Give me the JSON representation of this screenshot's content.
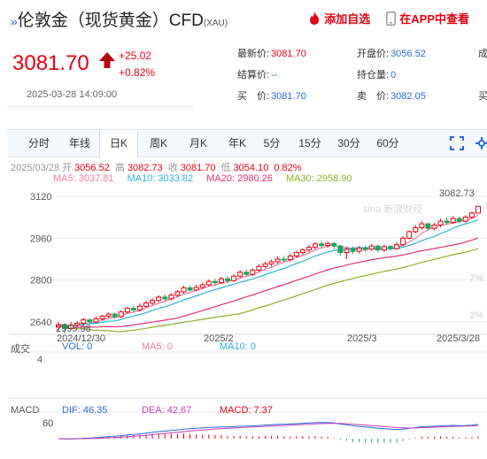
{
  "header": {
    "title": "伦敦金（现货黄金）CFD",
    "symbol": "(XAU)",
    "add_favorite": "添加自选",
    "app_view": "在APP中查看"
  },
  "quote": {
    "price": "3081.70",
    "change": "+25.02",
    "change_pct": "+0.82%",
    "timestamp": "2025-03-28 14:09:00",
    "latest_label": "最新价:",
    "latest_value": "3081.70",
    "open_label": "开盘价:",
    "open_value": "3056.52",
    "settle_label": "结算价:",
    "settle_value": "--",
    "oi_label": "持仓量:",
    "oi_value": "0",
    "buy_label": "买　价:",
    "buy_value": "3081.70",
    "sell_label": "卖　价:",
    "sell_value": "3082.05",
    "cut_label_1": "成",
    "cut_label_2": "买"
  },
  "tabs": [
    "分时",
    "年线",
    "日K",
    "周K",
    "月K",
    "年K",
    "5分",
    "15分",
    "30分",
    "60分"
  ],
  "active_tab": "日K",
  "ohlc": {
    "date": "2025/03/28",
    "open_label": "开",
    "open": "3056.52",
    "high_label": "高",
    "high": "3082.73",
    "close_label": "收",
    "close": "3081.70",
    "low_label": "低",
    "low": "3054.10",
    "pct": "0.82%"
  },
  "ma": {
    "ma5": "MA5: 3037.81",
    "ma10": "MA10: 3033.82",
    "ma20": "MA20: 2980.26",
    "ma30": "MA30: 2958.90"
  },
  "chart_data": {
    "type": "candlestick",
    "y_ticks": [
      "3120",
      "2960",
      "2800",
      "2640"
    ],
    "x_labels": [
      "2024/12/30",
      "2025/2",
      "2025/3",
      "2025/3/28"
    ],
    "max_label": "3082.73",
    "min_label": "2595.98",
    "watermark": "sina 新浪财经",
    "right_pct_labels": [
      "7%",
      "2%"
    ],
    "candles": [
      [
        2620,
        2630,
        2606,
        2640
      ],
      [
        2630,
        2615,
        2596,
        2635
      ],
      [
        2615,
        2628,
        2610,
        2640
      ],
      [
        2628,
        2635,
        2620,
        2642
      ],
      [
        2635,
        2648,
        2628,
        2655
      ],
      [
        2648,
        2640,
        2632,
        2652
      ],
      [
        2640,
        2652,
        2636,
        2660
      ],
      [
        2652,
        2662,
        2645,
        2668
      ],
      [
        2662,
        2670,
        2655,
        2676
      ],
      [
        2670,
        2660,
        2652,
        2675
      ],
      [
        2660,
        2678,
        2655,
        2685
      ],
      [
        2678,
        2692,
        2672,
        2698
      ],
      [
        2692,
        2686,
        2678,
        2702
      ],
      [
        2686,
        2700,
        2680,
        2710
      ],
      [
        2700,
        2712,
        2694,
        2720
      ],
      [
        2712,
        2722,
        2705,
        2730
      ],
      [
        2722,
        2735,
        2716,
        2742
      ],
      [
        2735,
        2728,
        2720,
        2745
      ],
      [
        2728,
        2742,
        2722,
        2750
      ],
      [
        2742,
        2755,
        2735,
        2762
      ],
      [
        2755,
        2770,
        2748,
        2778
      ],
      [
        2770,
        2762,
        2755,
        2780
      ],
      [
        2762,
        2772,
        2756,
        2782
      ],
      [
        2772,
        2782,
        2765,
        2790
      ],
      [
        2782,
        2795,
        2775,
        2802
      ],
      [
        2795,
        2790,
        2780,
        2805
      ],
      [
        2790,
        2805,
        2785,
        2812
      ],
      [
        2805,
        2798,
        2788,
        2815
      ],
      [
        2798,
        2815,
        2792,
        2822
      ],
      [
        2815,
        2830,
        2808,
        2838
      ],
      [
        2830,
        2822,
        2814,
        2840
      ],
      [
        2822,
        2838,
        2816,
        2845
      ],
      [
        2838,
        2852,
        2830,
        2860
      ],
      [
        2852,
        2862,
        2845,
        2870
      ],
      [
        2862,
        2870,
        2852,
        2878
      ],
      [
        2870,
        2880,
        2862,
        2890
      ],
      [
        2880,
        2878,
        2868,
        2892
      ],
      [
        2878,
        2892,
        2870,
        2900
      ],
      [
        2892,
        2905,
        2885,
        2912
      ],
      [
        2905,
        2915,
        2896,
        2922
      ],
      [
        2915,
        2925,
        2905,
        2934
      ],
      [
        2925,
        2938,
        2918,
        2945
      ],
      [
        2938,
        2932,
        2922,
        2950
      ],
      [
        2932,
        2940,
        2924,
        2948
      ],
      [
        2940,
        2930,
        2918,
        2946
      ],
      [
        2930,
        2905,
        2895,
        2935
      ],
      [
        2905,
        2918,
        2880,
        2925
      ],
      [
        2918,
        2910,
        2900,
        2928
      ],
      [
        2910,
        2922,
        2902,
        2930
      ],
      [
        2922,
        2918,
        2908,
        2932
      ],
      [
        2918,
        2930,
        2912,
        2938
      ],
      [
        2930,
        2915,
        2905,
        2936
      ],
      [
        2915,
        2928,
        2908,
        2935
      ],
      [
        2928,
        2920,
        2912,
        2934
      ],
      [
        2920,
        2935,
        2915,
        2945
      ],
      [
        2935,
        2960,
        2930,
        2968
      ],
      [
        2960,
        2985,
        2955,
        2990
      ],
      [
        2985,
        3000,
        2978,
        3010
      ],
      [
        3000,
        3015,
        2992,
        3025
      ],
      [
        3015,
        2998,
        2990,
        3020
      ],
      [
        2998,
        3010,
        2990,
        3018
      ],
      [
        3010,
        3025,
        3002,
        3035
      ],
      [
        3025,
        3020,
        3012,
        3040
      ],
      [
        3020,
        3035,
        3015,
        3045
      ],
      [
        3035,
        3025,
        3018,
        3042
      ],
      [
        3025,
        3040,
        3020,
        3048
      ],
      [
        3040,
        3056,
        3035,
        3062
      ],
      [
        3056,
        3082,
        3054,
        3083
      ]
    ]
  },
  "volume": {
    "title": "成交",
    "axis": "4",
    "vol": "VOL: 0",
    "ma5": "MA5: 0",
    "ma10": "MA10: 0"
  },
  "macd": {
    "title": "MACD",
    "axis": "60",
    "dif": "DIF: 46.35",
    "dea": "DEA: 42.67",
    "macd": "MACD: 7.37"
  },
  "colors": {
    "up": "#e60012",
    "down": "#1aa55b",
    "ma5": "#f07aa8",
    "ma10": "#2bb3d8",
    "ma20": "#e0317a",
    "ma30": "#8fb02a",
    "link": "#2b6bd6"
  }
}
